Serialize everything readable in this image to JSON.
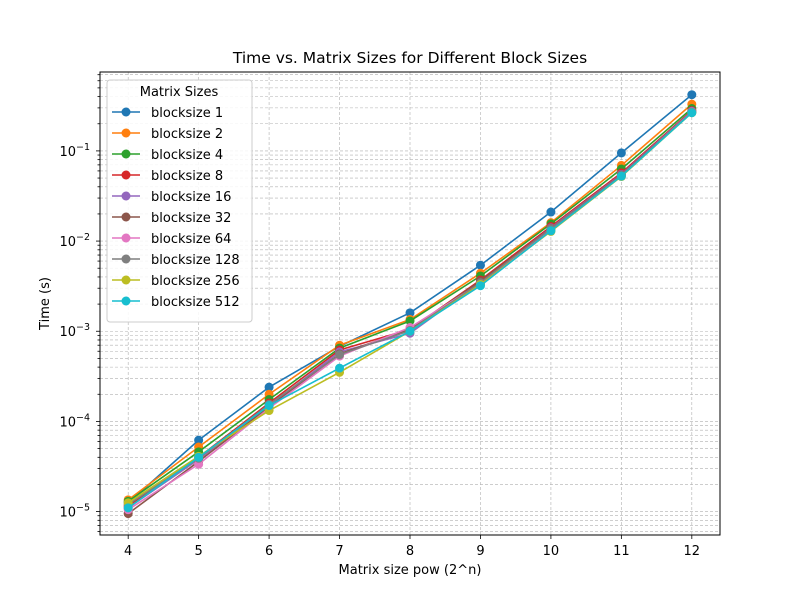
{
  "chart_data": {
    "type": "line",
    "title": "Time vs. Matrix Sizes for Different Block Sizes",
    "xlabel": "Matrix size pow (2^n)",
    "ylabel": "Time (s)",
    "xlim": [
      3.6,
      12.4
    ],
    "ylim": [
      5.5e-06,
      0.75
    ],
    "yscale": "log",
    "x": [
      4,
      5,
      6,
      7,
      8,
      9,
      10,
      11,
      12
    ],
    "x_tick_labels": [
      "4",
      "5",
      "6",
      "7",
      "8",
      "9",
      "10",
      "11",
      "12"
    ],
    "y_ticks": [
      {
        "value": 1e-05,
        "base": "10",
        "exp": "−5"
      },
      {
        "value": 0.0001,
        "base": "10",
        "exp": "−4"
      },
      {
        "value": 0.001,
        "base": "10",
        "exp": "−3"
      },
      {
        "value": 0.01,
        "base": "10",
        "exp": "−2"
      },
      {
        "value": 0.1,
        "base": "10",
        "exp": "−1"
      }
    ],
    "grid": true,
    "legend": {
      "title": "Matrix Sizes",
      "position": "upper-left"
    },
    "series": [
      {
        "name": "blocksize 1",
        "color": "#1f77b4",
        "values": [
          1.25e-05,
          6.2e-05,
          0.00024,
          0.00068,
          0.0016,
          0.0054,
          0.021,
          0.095,
          0.42
        ]
      },
      {
        "name": "blocksize 2",
        "color": "#ff7f0e",
        "values": [
          1.35e-05,
          5.2e-05,
          0.0002,
          0.0007,
          0.00135,
          0.0044,
          0.016,
          0.069,
          0.33
        ]
      },
      {
        "name": "blocksize 4",
        "color": "#2ca02c",
        "values": [
          1.3e-05,
          4.6e-05,
          0.000175,
          0.00065,
          0.0013,
          0.0041,
          0.0155,
          0.063,
          0.295
        ]
      },
      {
        "name": "blocksize 8",
        "color": "#d62728",
        "values": [
          1.15e-05,
          4e-05,
          0.00016,
          0.00062,
          0.00105,
          0.0037,
          0.0145,
          0.057,
          0.28
        ]
      },
      {
        "name": "blocksize 16",
        "color": "#9467bd",
        "values": [
          1.1e-05,
          3.8e-05,
          0.00015,
          0.00059,
          0.00095,
          0.0035,
          0.014,
          0.055,
          0.275
        ]
      },
      {
        "name": "blocksize 32",
        "color": "#8c564b",
        "values": [
          9.5e-06,
          3.6e-05,
          0.000145,
          0.00056,
          0.00105,
          0.0036,
          0.0138,
          0.054,
          0.27
        ]
      },
      {
        "name": "blocksize 64",
        "color": "#e377c2",
        "values": [
          1.05e-05,
          3.35e-05,
          0.00014,
          0.00053,
          0.0011,
          0.0034,
          0.0135,
          0.053,
          0.27
        ]
      },
      {
        "name": "blocksize 128",
        "color": "#7f7f7f",
        "values": [
          1.2e-05,
          3.9e-05,
          0.000155,
          0.00055,
          0.00102,
          0.00345,
          0.0137,
          0.0535,
          0.268
        ]
      },
      {
        "name": "blocksize 256",
        "color": "#bcbd22",
        "values": [
          1.25e-05,
          4.1e-05,
          0.000132,
          0.00035,
          0.001,
          0.0033,
          0.0128,
          0.052,
          0.265
        ]
      },
      {
        "name": "blocksize 512",
        "color": "#17becf",
        "values": [
          1.1e-05,
          4e-05,
          0.00015,
          0.00039,
          0.001,
          0.0032,
          0.013,
          0.0525,
          0.265
        ]
      }
    ]
  }
}
